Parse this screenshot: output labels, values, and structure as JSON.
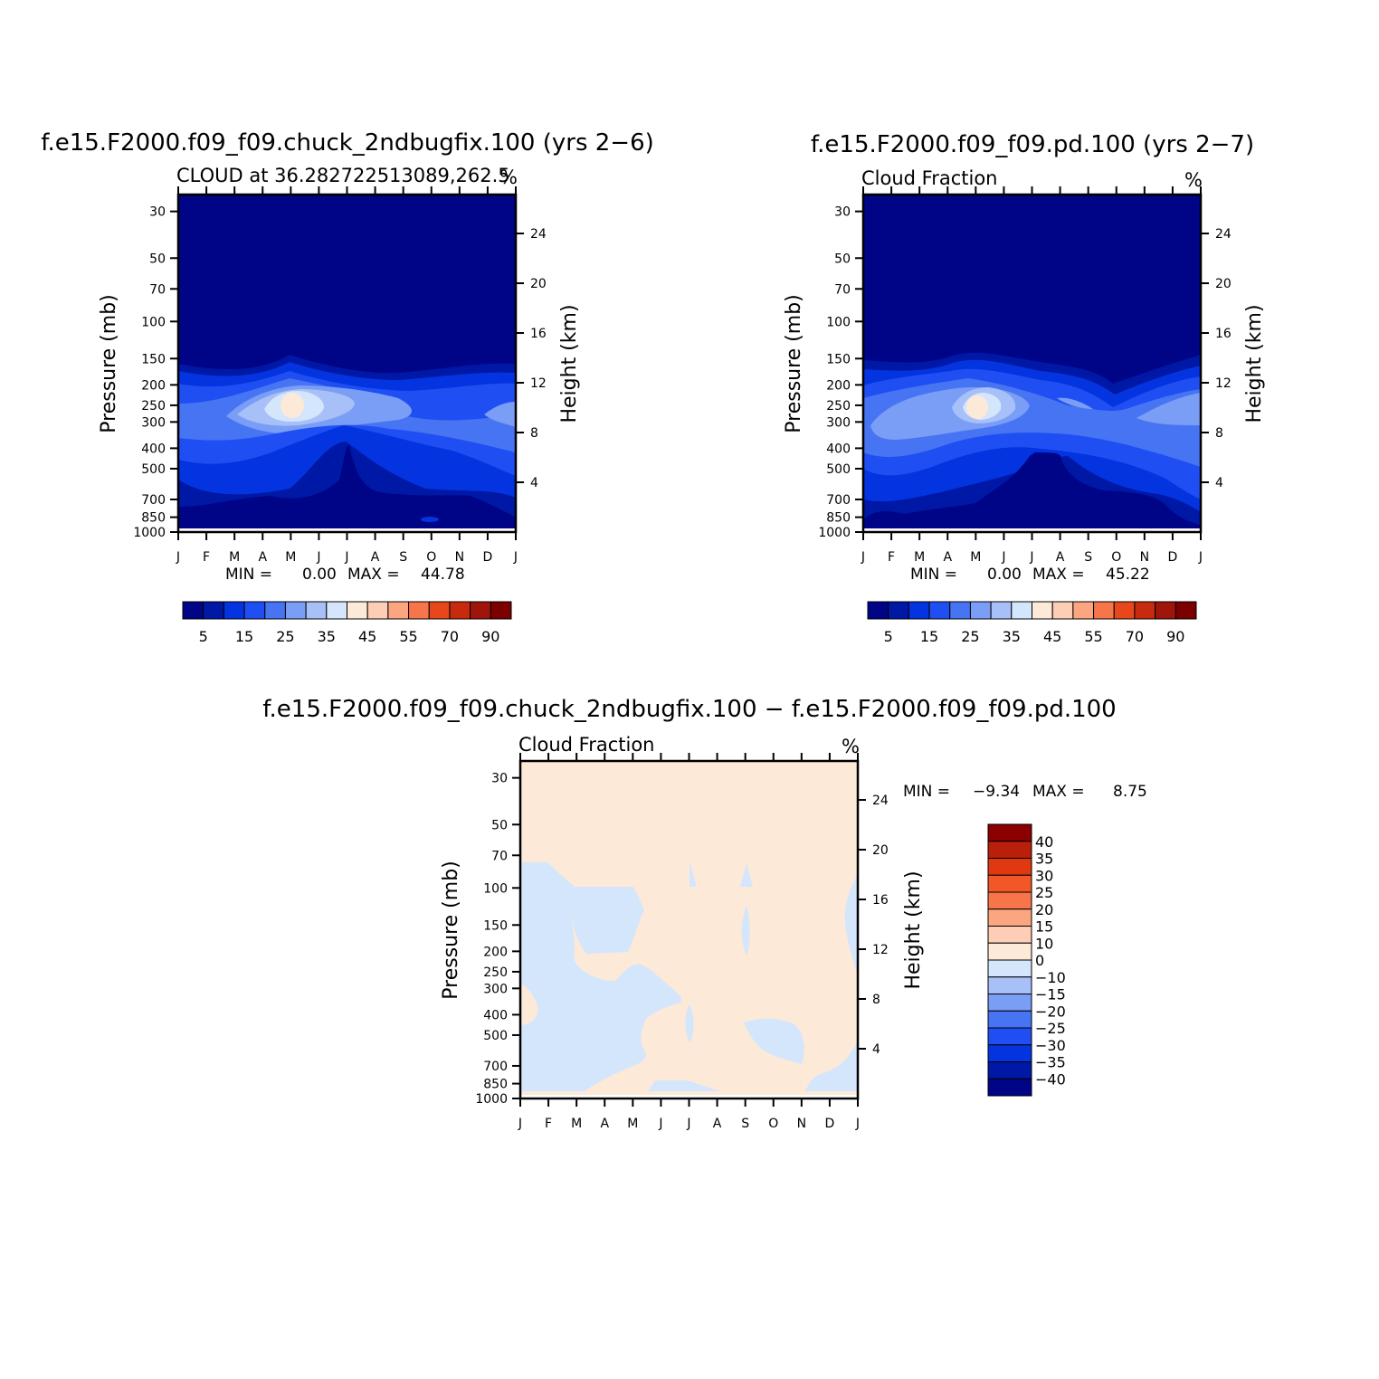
{
  "colors": {
    "seq": [
      "#000487",
      "#0018a6",
      "#0433e0",
      "#1f4ff2",
      "#4674f3",
      "#7a9df6",
      "#a8c0f8",
      "#d4e6fc",
      "#fde9d8",
      "#fdcdb5",
      "#fba680",
      "#f7754a",
      "#e8471b",
      "#c72a0c",
      "#a0150b",
      "#7c0000"
    ],
    "diff": [
      "#000487",
      "#0018a6",
      "#0433e0",
      "#1f4ff2",
      "#4674f3",
      "#7a9df6",
      "#a8c0f8",
      "#d4e6fc",
      "#fde9d8",
      "#fdcdb5",
      "#fba680",
      "#f7754a",
      "#f25727",
      "#e03912",
      "#b8200b",
      "#8b0000"
    ]
  },
  "panels": [
    {
      "id": "case1",
      "title": "f.e15.F2000.f09_f09.chuck_2ndbugfix.100 (yrs 2−6)",
      "subtitle_left": "CLOUD at 36.282722513089,262.5",
      "subtitle_right": "%",
      "ylabel": "Pressure (mb)",
      "y2label": "Height (km)",
      "stats": {
        "min_label": "MIN =",
        "min": "0.00",
        "max_label": "MAX =",
        "max": "44.78"
      }
    },
    {
      "id": "case2",
      "title": "f.e15.F2000.f09_f09.pd.100 (yrs 2−7)",
      "subtitle_left": "Cloud Fraction",
      "subtitle_right": "%",
      "ylabel": "Pressure (mb)",
      "y2label": "Height (km)",
      "stats": {
        "min_label": "MIN =",
        "min": "0.00",
        "max_label": "MAX =",
        "max": "45.22"
      }
    },
    {
      "id": "diff",
      "title": "f.e15.F2000.f09_f09.chuck_2ndbugfix.100 − f.e15.F2000.f09_f09.pd.100",
      "subtitle_left": "Cloud Fraction",
      "subtitle_right": "%",
      "ylabel": "Pressure (mb)",
      "y2label": "Height (km)",
      "stats": {
        "min_label": "MIN =",
        "min": "−9.34",
        "max_label": "MAX =",
        "max": "8.75"
      }
    }
  ],
  "chart_data": [
    {
      "type": "heatmap",
      "title": "f.e15.F2000.f09_f09.chuck_2ndbugfix.100 (yrs 2−6)",
      "subtitle": "CLOUD at 36.282722513089,262.5",
      "units": "%",
      "x_ticks": [
        "J",
        "F",
        "M",
        "A",
        "M",
        "J",
        "J",
        "A",
        "S",
        "O",
        "N",
        "D",
        "J"
      ],
      "y_ticks_pressure": [
        "30",
        "50",
        "70",
        "100",
        "150",
        "200",
        "250",
        "300",
        "400",
        "500",
        "700",
        "850",
        "1000"
      ],
      "y2_ticks_height": [
        "24",
        "20",
        "16",
        "12",
        "8",
        "4"
      ],
      "ylabel": "Pressure (mb)",
      "y2label": "Height (km)",
      "colorbar_levels": [
        "5",
        "15",
        "25",
        "35",
        "45",
        "55",
        "70",
        "90"
      ],
      "min": 0.0,
      "max": 44.78
    },
    {
      "type": "heatmap",
      "title": "f.e15.F2000.f09_f09.pd.100 (yrs 2−7)",
      "subtitle": "Cloud Fraction",
      "units": "%",
      "x_ticks": [
        "J",
        "F",
        "M",
        "A",
        "M",
        "J",
        "J",
        "A",
        "S",
        "O",
        "N",
        "D",
        "J"
      ],
      "y_ticks_pressure": [
        "30",
        "50",
        "70",
        "100",
        "150",
        "200",
        "250",
        "300",
        "400",
        "500",
        "700",
        "850",
        "1000"
      ],
      "y2_ticks_height": [
        "24",
        "20",
        "16",
        "12",
        "8",
        "4"
      ],
      "ylabel": "Pressure (mb)",
      "y2label": "Height (km)",
      "colorbar_levels": [
        "5",
        "15",
        "25",
        "35",
        "45",
        "55",
        "70",
        "90"
      ],
      "min": 0.0,
      "max": 45.22
    },
    {
      "type": "heatmap",
      "title": "f.e15.F2000.f09_f09.chuck_2ndbugfix.100 − f.e15.F2000.f09_f09.pd.100",
      "subtitle": "Cloud Fraction",
      "units": "%",
      "x_ticks": [
        "J",
        "F",
        "M",
        "A",
        "M",
        "J",
        "J",
        "A",
        "S",
        "O",
        "N",
        "D",
        "J"
      ],
      "y_ticks_pressure": [
        "30",
        "50",
        "70",
        "100",
        "150",
        "200",
        "250",
        "300",
        "400",
        "500",
        "700",
        "850",
        "1000"
      ],
      "y2_ticks_height": [
        "24",
        "20",
        "16",
        "12",
        "8",
        "4"
      ],
      "ylabel": "Pressure (mb)",
      "y2label": "Height (km)",
      "colorbar_levels": [
        "40",
        "35",
        "30",
        "25",
        "20",
        "15",
        "10",
        "0",
        "−10",
        "−15",
        "−20",
        "−25",
        "−30",
        "−35",
        "−40"
      ],
      "min": -9.34,
      "max": 8.75
    }
  ]
}
